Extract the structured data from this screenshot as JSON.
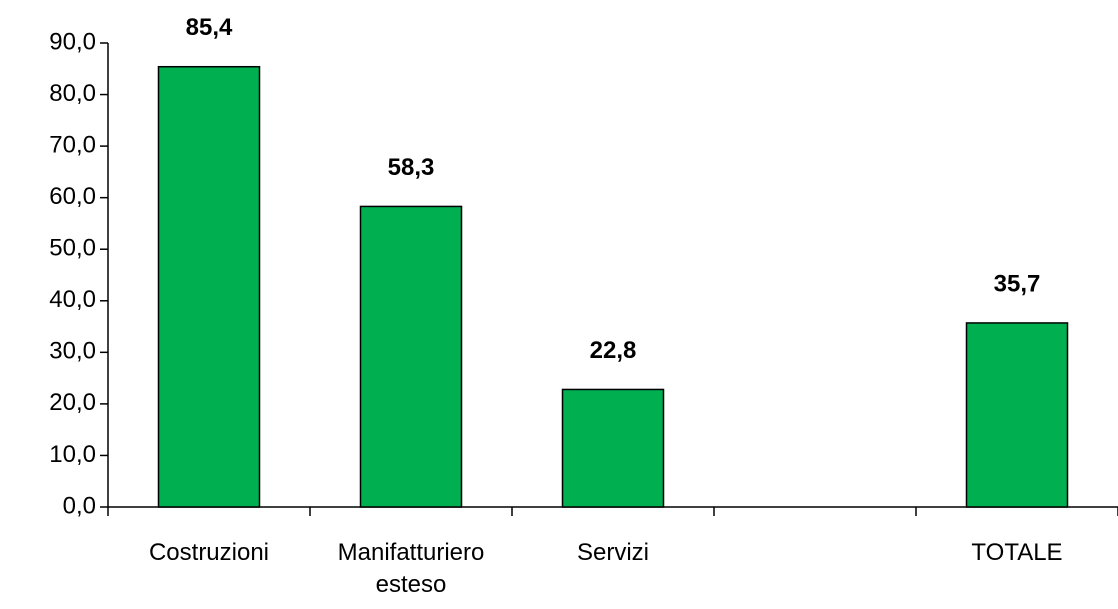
{
  "chart_data": {
    "type": "bar",
    "categories": [
      "Costruzioni",
      "Manifatturiero esteso",
      "Servizi",
      null,
      "TOTALE"
    ],
    "values": [
      85.4,
      58.3,
      22.8,
      null,
      35.7
    ],
    "value_labels": [
      "85,4",
      "58,3",
      "22,8",
      null,
      "35,7"
    ],
    "color": "#00b050",
    "ylim": [
      0,
      90
    ],
    "yticks": [
      {
        "value": 0,
        "label": "0,0"
      },
      {
        "value": 10,
        "label": "10,0"
      },
      {
        "value": 20,
        "label": "20,0"
      },
      {
        "value": 30,
        "label": "30,0"
      },
      {
        "value": 40,
        "label": "40,0"
      },
      {
        "value": 50,
        "label": "50,0"
      },
      {
        "value": 60,
        "label": "60,0"
      },
      {
        "value": 70,
        "label": "70,0"
      },
      {
        "value": 80,
        "label": "80,0"
      },
      {
        "value": 90,
        "label": "90,0"
      }
    ],
    "grid": false
  }
}
